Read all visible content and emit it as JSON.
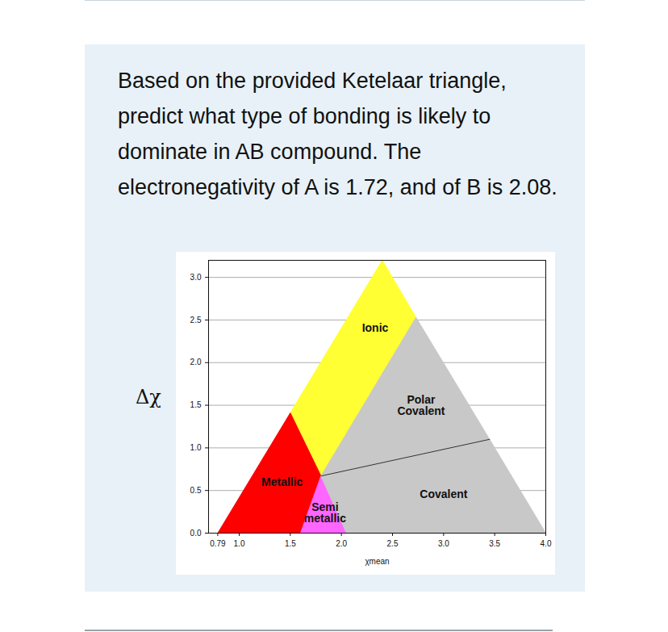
{
  "chart_data": {
    "type": "region",
    "title": "Based on the provided Ketelaar triangle, predict what type of bonding is likely to dominate in AB compound. The electronegativity of A is 1.72, and of B is 2.08.",
    "x_label": "χmean",
    "y_label": "Δχ",
    "xlim": [
      0.7,
      4.0
    ],
    "ylim": [
      0,
      3.2
    ],
    "xticks": [
      0.79,
      {
        "value": 1,
        "label": "1.0"
      },
      1.5,
      {
        "value": 2,
        "label": "2.0"
      },
      2.5,
      {
        "value": 3,
        "label": "3.0"
      },
      3.5,
      {
        "value": 4,
        "label": "4.0"
      }
    ],
    "yticks": [
      {
        "value": 0,
        "label": "0.0"
      },
      0.5,
      {
        "value": 1,
        "label": "1.0"
      },
      1.5,
      {
        "value": 2,
        "label": "2.0"
      },
      2.5,
      {
        "value": 3,
        "label": "3.0"
      }
    ],
    "grid": true,
    "regions": [
      {
        "name": "Ionic",
        "color": "#ffff33",
        "points": [
          [
            1.5,
            1.41
          ],
          [
            2.4,
            3.2
          ],
          [
            2.73,
            2.53
          ],
          [
            1.8,
            0.67
          ]
        ],
        "label_at": [
          2.33,
          2.4
        ]
      },
      {
        "name": "Metallic",
        "color": "#ff0000",
        "points": [
          [
            0.79,
            0
          ],
          [
            1.5,
            1.41
          ],
          [
            1.8,
            0.67
          ],
          [
            1.6,
            0
          ]
        ],
        "label_at": [
          1.42,
          0.6
        ]
      },
      {
        "name": "Semi\nmetallic",
        "color": "#ff66ff",
        "points": [
          [
            1.6,
            0
          ],
          [
            1.8,
            0.67
          ],
          [
            2.05,
            0
          ]
        ],
        "label_at": [
          1.84,
          0.24
        ]
      },
      {
        "name": "Polar\nCovalent",
        "color": "#c8c8c8",
        "points": [
          [
            1.8,
            0.67
          ],
          [
            2.73,
            2.53
          ],
          [
            3.45,
            1.1
          ]
        ],
        "label_at": [
          2.78,
          1.5
        ]
      },
      {
        "name": "Covalent",
        "color": "#c8c8c8",
        "points": [
          [
            2.05,
            0
          ],
          [
            1.8,
            0.67
          ],
          [
            3.45,
            1.1
          ],
          [
            4.0,
            0
          ]
        ],
        "label_at": [
          3.0,
          0.45
        ]
      }
    ]
  }
}
